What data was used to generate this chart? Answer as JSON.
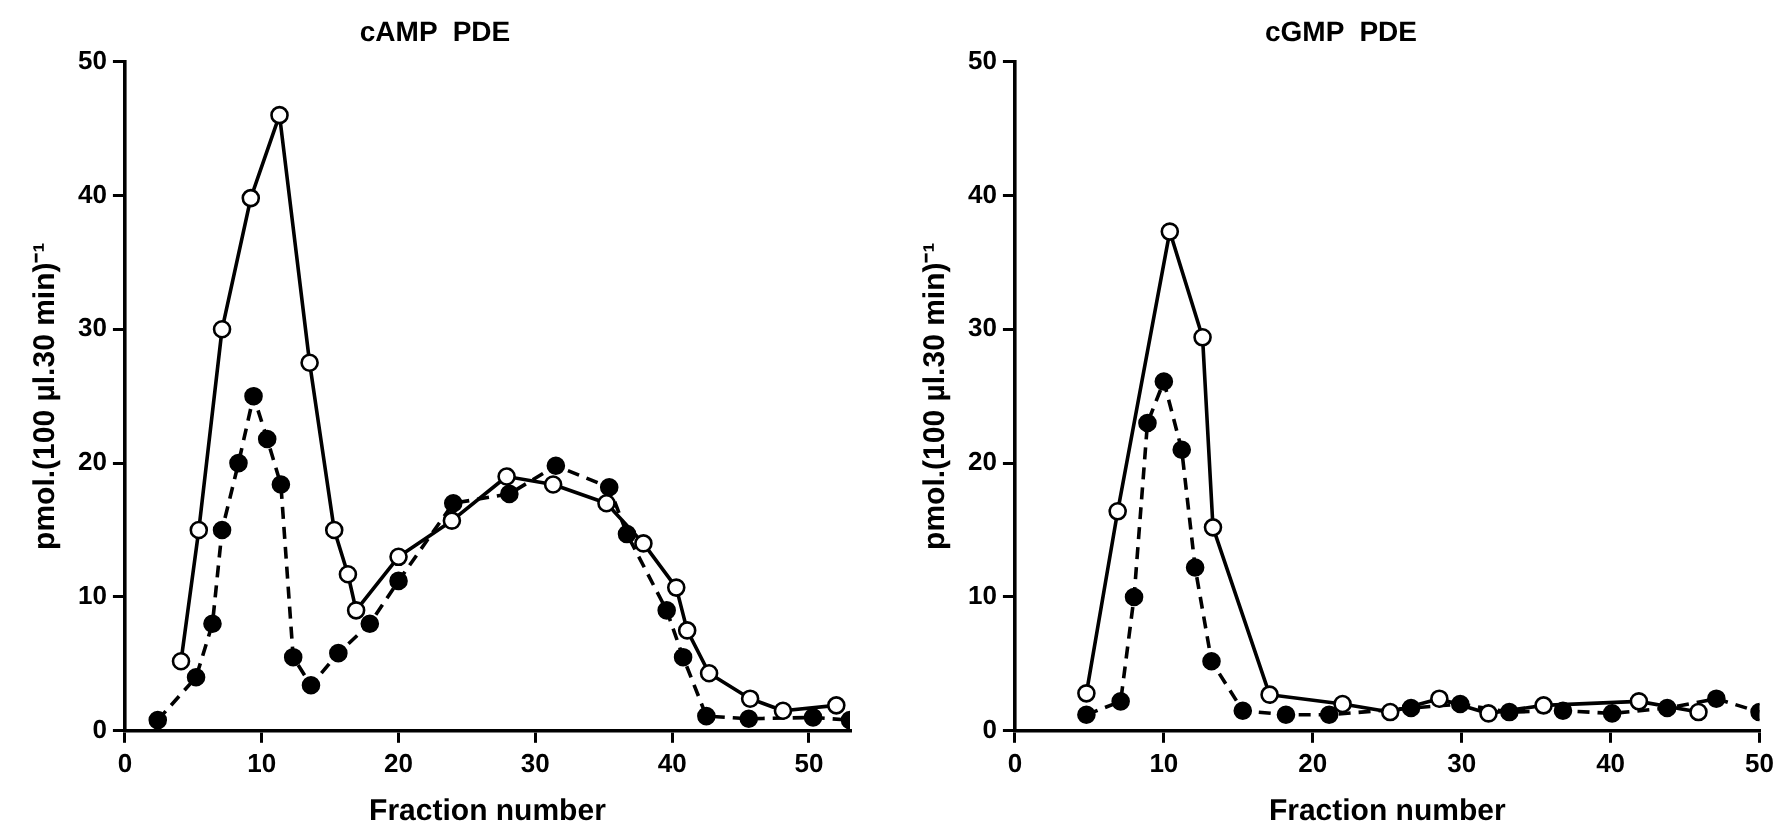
{
  "chart_data": [
    {
      "type": "line",
      "title": "cAMP  PDE",
      "xlabel": "Fraction number",
      "ylabel": "pmol.(100 µl.30 min)⁻¹",
      "xlim": [
        0,
        53
      ],
      "xticks": [
        0,
        10,
        20,
        30,
        40,
        50
      ],
      "ylim": [
        0,
        50
      ],
      "yticks": [
        0,
        10,
        20,
        30,
        40,
        50
      ],
      "grid": false,
      "legend": false,
      "marker": "circle",
      "series": [
        {
          "color": "#000000",
          "line_style": "solid",
          "x": [
            4.1,
            5.4,
            7.1,
            9.2,
            11.3,
            13.5,
            15.3,
            16.3,
            16.9,
            20,
            23.9,
            27.9,
            31.3,
            35.2,
            37.9,
            40.3,
            41.1,
            42.7,
            45.7,
            48.1,
            52
          ],
          "values": [
            5.2,
            15,
            30,
            39.8,
            46,
            27.5,
            15,
            11.7,
            9,
            13,
            15.7,
            19,
            18.4,
            17,
            14,
            10.7,
            7.5,
            4.3,
            2.4,
            1.5,
            1.9
          ]
        },
        {
          "color": "#000000",
          "line_style": "dashed",
          "x": [
            2.4,
            5.2,
            6.4,
            7.1,
            8.3,
            9.4,
            10.4,
            11.4,
            12.3,
            13.6,
            15.6,
            17.9,
            20,
            24,
            28.1,
            31.5,
            35.4,
            36.7,
            39.6,
            40.8,
            42.5,
            45.6,
            50.3,
            53
          ],
          "values": [
            0.8,
            4,
            8,
            15,
            20,
            25,
            21.8,
            18.4,
            5.5,
            3.4,
            5.8,
            8,
            11.2,
            17,
            17.7,
            19.8,
            18.2,
            14.7,
            9,
            5.5,
            1.1,
            0.9,
            1,
            0.8
          ]
        }
      ]
    },
    {
      "type": "line",
      "title": "cGMP  PDE",
      "xlabel": "Fraction number",
      "ylabel": "pmol.(100 µl.30 min)⁻¹",
      "xlim": [
        0,
        50
      ],
      "xticks": [
        0,
        10,
        20,
        30,
        40,
        50
      ],
      "ylim": [
        0,
        50
      ],
      "yticks": [
        0,
        10,
        20,
        30,
        40,
        50
      ],
      "grid": false,
      "legend": false,
      "marker": "circle",
      "series": [
        {
          "color": "#000000",
          "line_style": "solid",
          "x": [
            4.8,
            6.9,
            10.4,
            12.6,
            13.3,
            17.1,
            22,
            25.2,
            28.5,
            31.8,
            35.5,
            41.9,
            45.9
          ],
          "values": [
            2.8,
            16.4,
            37.3,
            29.4,
            15.2,
            2.7,
            2,
            1.4,
            2.4,
            1.3,
            1.9,
            2.2,
            1.4
          ]
        },
        {
          "color": "#000000",
          "line_style": "dashed",
          "x": [
            4.8,
            7.1,
            8,
            8.9,
            10,
            11.2,
            12.1,
            13.2,
            15.3,
            18.2,
            21.1,
            26.6,
            29.9,
            33.2,
            36.8,
            40.1,
            43.8,
            47.1,
            50
          ],
          "values": [
            1.2,
            2.2,
            10,
            23,
            26.1,
            21,
            12.2,
            5.2,
            1.5,
            1.2,
            1.2,
            1.7,
            2,
            1.4,
            1.5,
            1.3,
            1.7,
            2.4,
            1.4
          ]
        }
      ]
    }
  ]
}
